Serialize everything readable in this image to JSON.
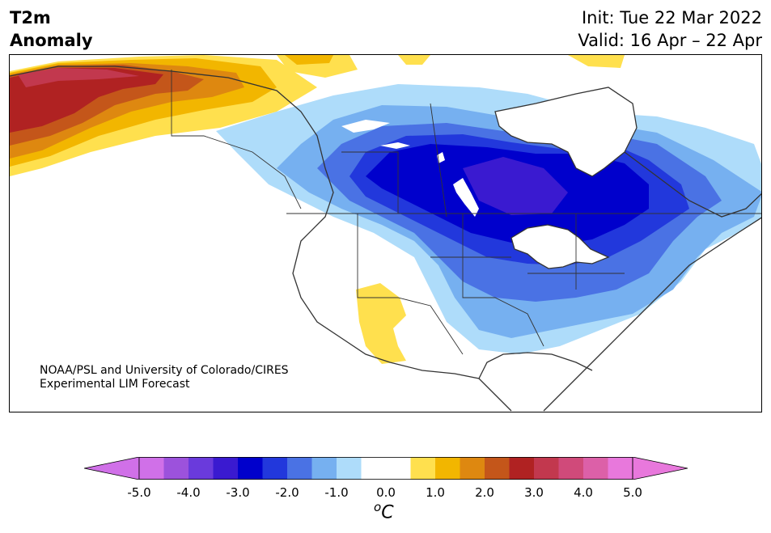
{
  "header": {
    "var_line1": "T2m",
    "var_line2": "Anomaly",
    "init": "Init: Tue 22 Mar 2022",
    "valid": "Valid: 16 Apr – 22 Apr"
  },
  "credit": {
    "line1": "NOAA/PSL and University of Colorado/CIRES",
    "line2": "Experimental LIM Forecast"
  },
  "colorbar": {
    "ticks": [
      "-5.0",
      "-4.0",
      "-3.0",
      "-2.0",
      "-1.0",
      "0.0",
      "1.0",
      "2.0",
      "3.0",
      "4.0",
      "5.0"
    ],
    "units_base": "C",
    "units_sup": "o",
    "colors": [
      "#d070e8",
      "#9c52dc",
      "#6a3adc",
      "#3a1ad0",
      "#0000cc",
      "#2238dc",
      "#4a72e4",
      "#76b0f0",
      "#aedcfa",
      "#ffffff",
      "#ffffff",
      "#ffe04e",
      "#f2b600",
      "#de8810",
      "#c4561a",
      "#b02222",
      "#c2384e",
      "#d04a7a",
      "#dc60a8",
      "#e878dc"
    ],
    "under_color": "#d070e8",
    "over_color": "#e878dc"
  },
  "map": {
    "colors": {
      "cold1": "#aedcfa",
      "cold2": "#76b0f0",
      "cold3": "#4a72e4",
      "cold4": "#2238dc",
      "cold5": "#0000cc",
      "cold6": "#3a1ad0",
      "warm1": "#ffe04e",
      "warm2": "#f2b600",
      "warm3": "#de8810",
      "warm4": "#c4561a",
      "warm5": "#b02222",
      "warm6": "#c2384e",
      "coast": "#333333"
    }
  }
}
